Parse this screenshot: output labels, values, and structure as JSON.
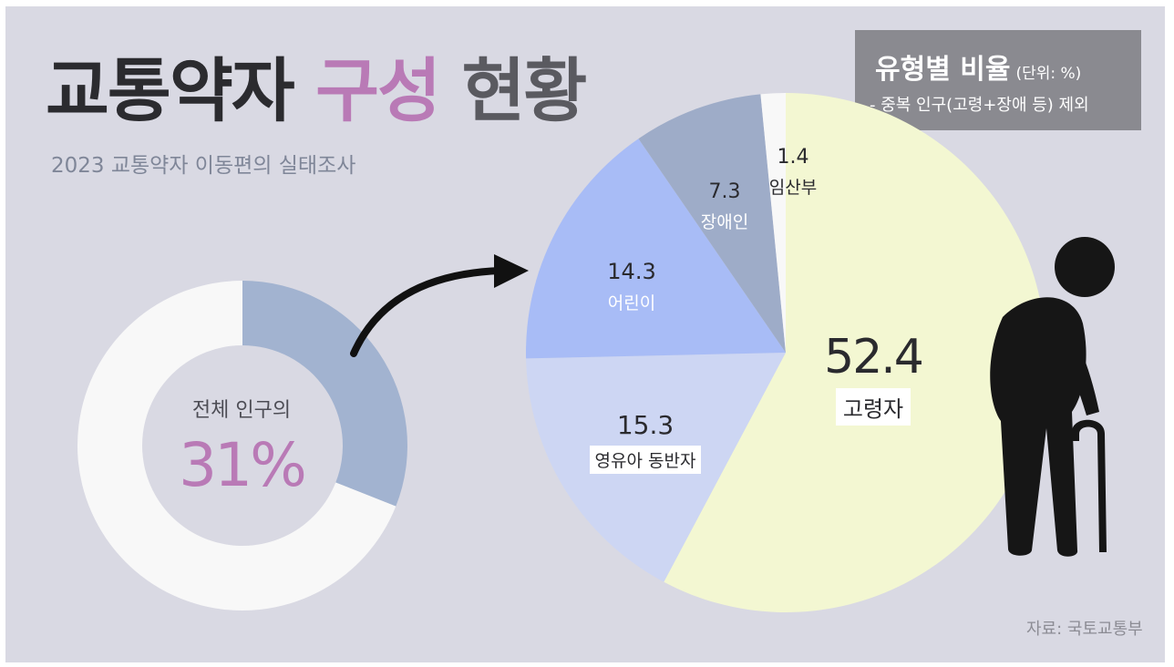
{
  "header": {
    "title_part1": "교통약자",
    "title_part2": "구성",
    "title_part3": "현황",
    "subtitle": "2023 교통약자 이동편의 실태조사"
  },
  "legend_box": {
    "title": "유형별 비율",
    "unit": "(단위: %)",
    "note": "- 중복 인구(고령+장애 등) 제외"
  },
  "source": "자료: 국토교통부",
  "colors": {
    "background": "#d9d9e3",
    "accent_pink": "#b97ab6",
    "donut_rest": "#f8f8f8",
    "donut_share": "#a2b3d0",
    "elderly": "#f3f7d2",
    "infant_companion": "#cdd6f3",
    "children": "#a8bcf6",
    "disabled": "#9eacc8",
    "pregnant": "#f8f8f8"
  },
  "chart_data": [
    {
      "type": "pie",
      "subtype": "donut",
      "caption": "전체 인구의",
      "value_label": "31%",
      "values": [
        31,
        69
      ]
    },
    {
      "type": "pie",
      "title": "유형별 비율",
      "unit": "%",
      "categories": [
        "고령자",
        "영유아 동반자",
        "어린이",
        "장애인",
        "임산부"
      ],
      "values": [
        52.4,
        15.3,
        14.3,
        7.3,
        1.4
      ],
      "value_labels": [
        "52.4",
        "15.3",
        "14.3",
        "7.3",
        "1.4"
      ]
    }
  ]
}
